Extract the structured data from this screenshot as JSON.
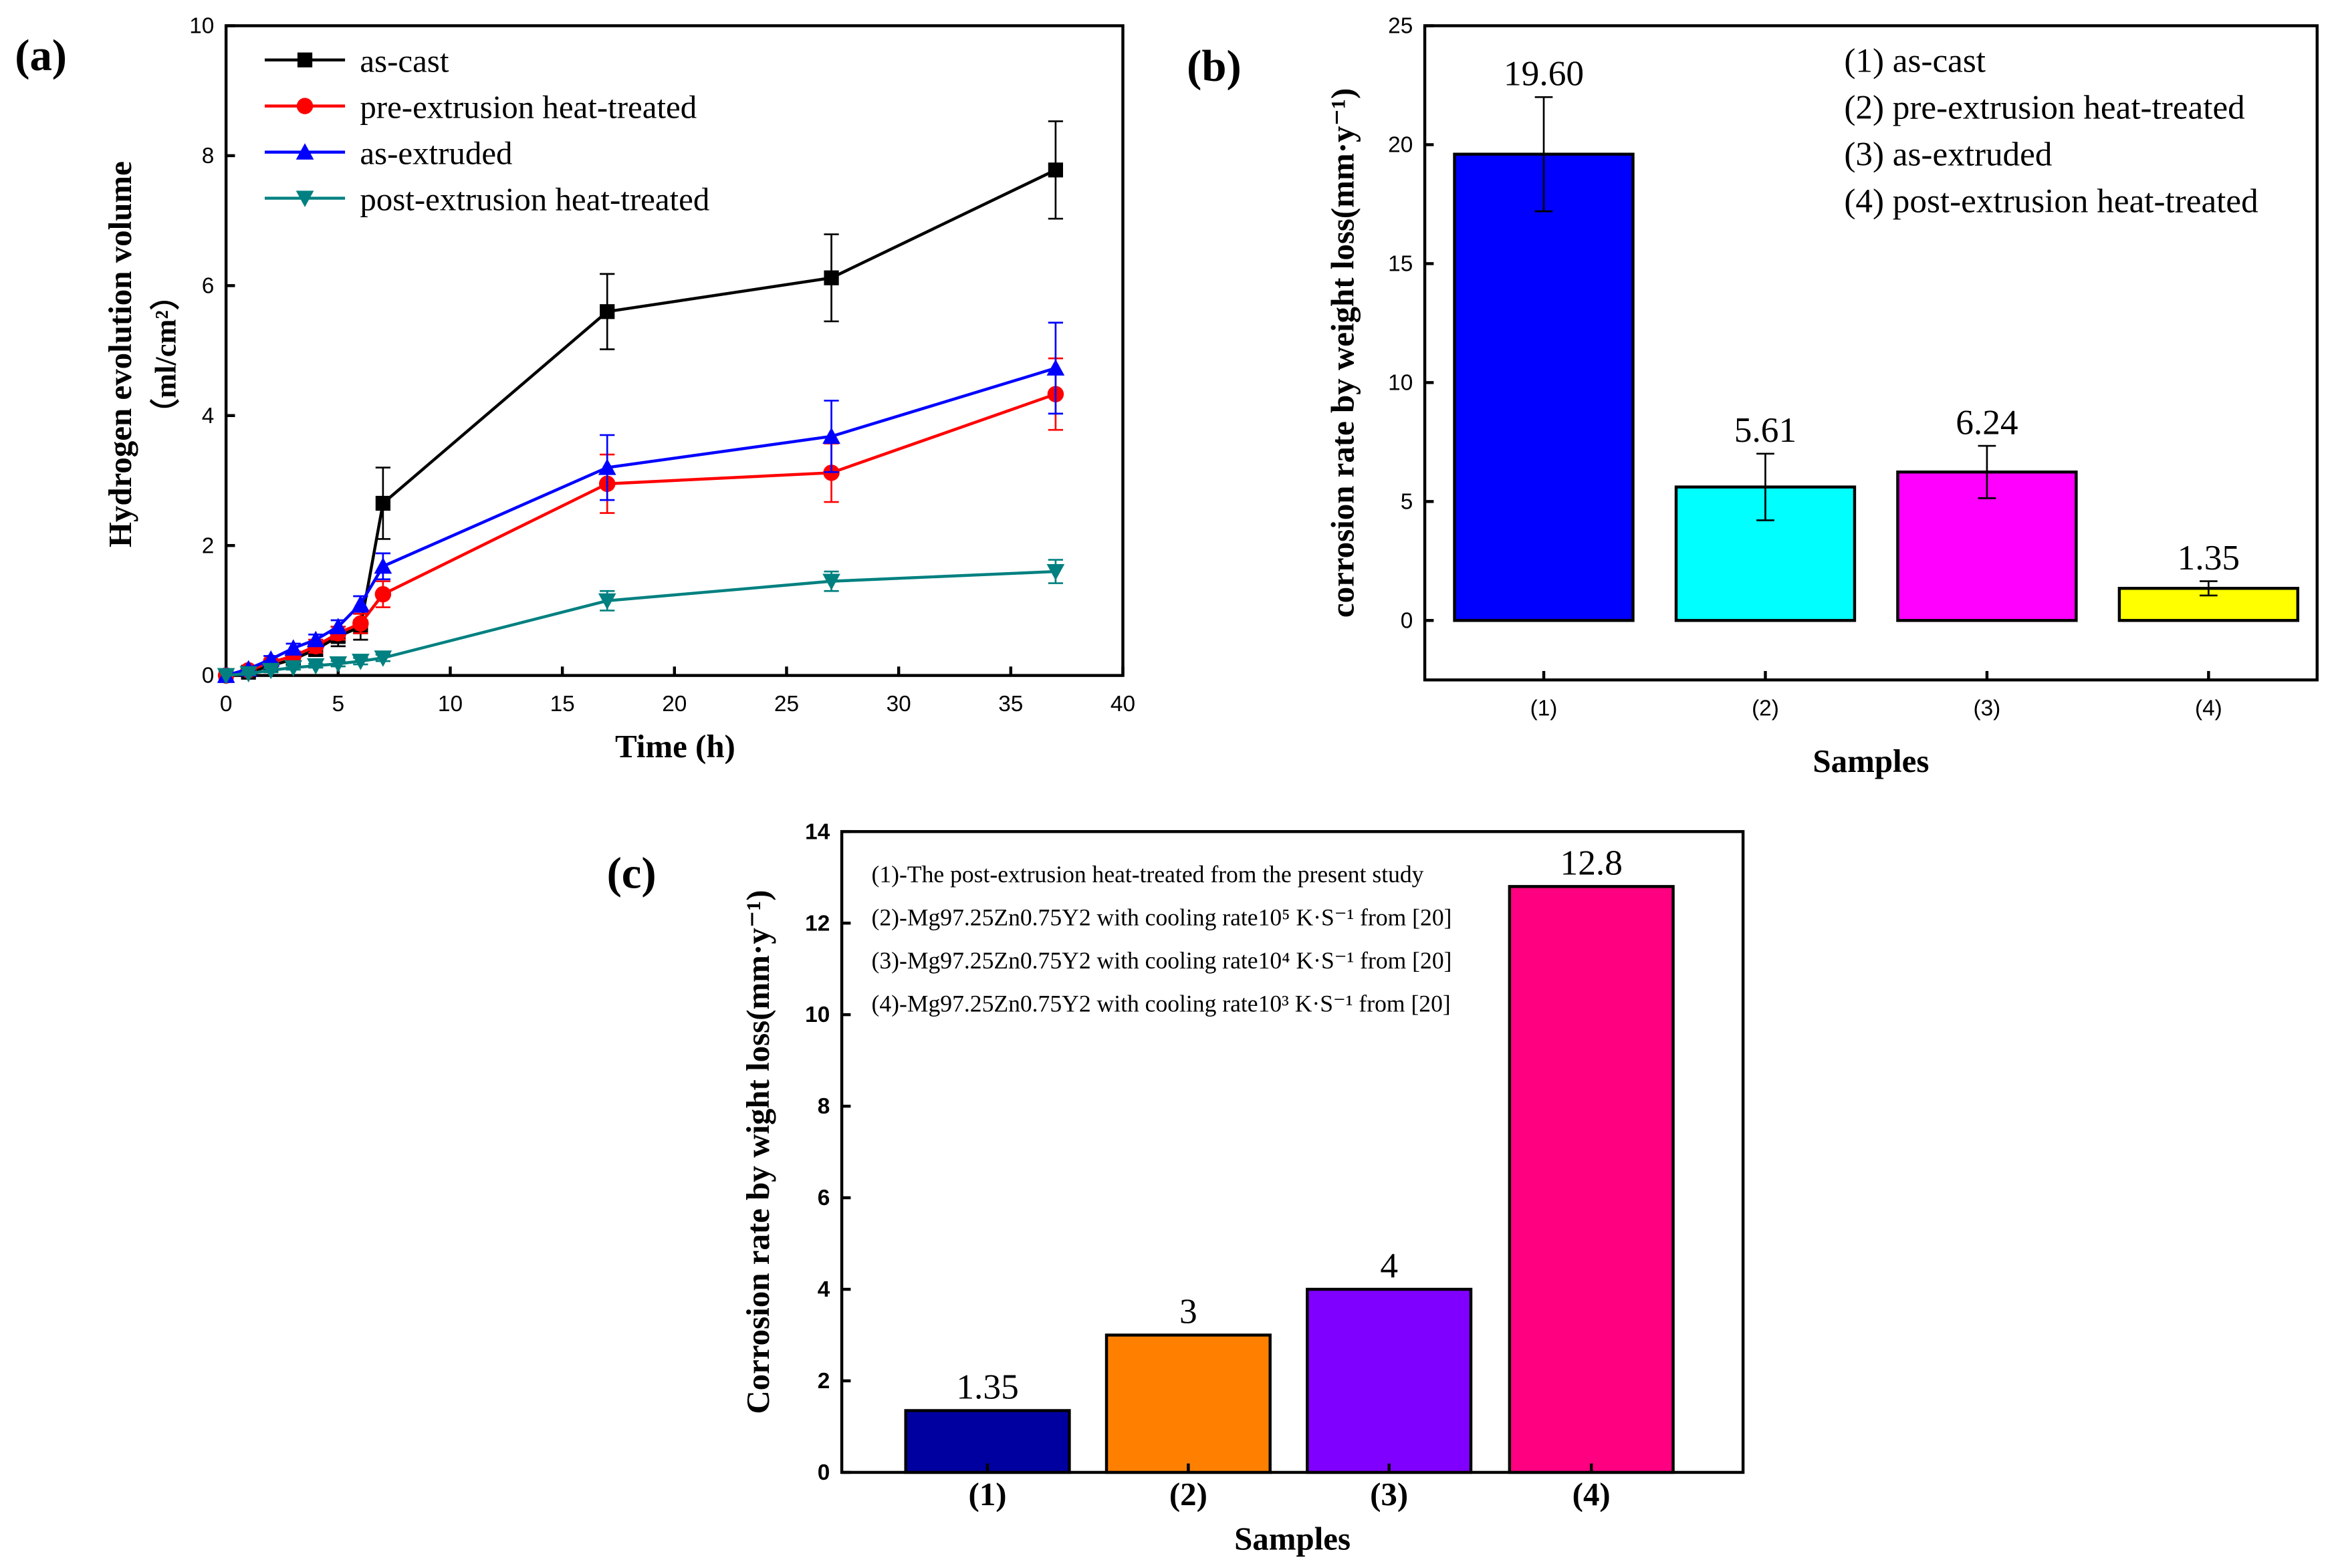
{
  "chart_data": [
    {
      "panel": "(a)",
      "type": "line",
      "xlabel": "Time (h)",
      "ylabel": "Hydrogen evolution volume",
      "ylabel_unit": "（ml/cm²）",
      "xlim": [
        0,
        40
      ],
      "ylim": [
        0,
        10
      ],
      "xticks": [
        0,
        5,
        10,
        15,
        20,
        25,
        30,
        35,
        40
      ],
      "yticks": [
        0,
        2,
        4,
        6,
        8,
        10
      ],
      "x": [
        0,
        1,
        2,
        3,
        4,
        5,
        6,
        7,
        17,
        27,
        37
      ],
      "series": [
        {
          "name": "as-cast",
          "color": "#000000",
          "marker": "square",
          "values": [
            0,
            0.05,
            0.15,
            0.25,
            0.4,
            0.6,
            0.75,
            2.65,
            5.6,
            6.12,
            7.78
          ],
          "errors": [
            0,
            0.03,
            0.05,
            0.08,
            0.1,
            0.15,
            0.2,
            0.55,
            0.58,
            0.67,
            0.75
          ]
        },
        {
          "name": "pre-extrusion heat-treated",
          "color": "#ff0000",
          "marker": "circle",
          "values": [
            0,
            0.08,
            0.2,
            0.3,
            0.45,
            0.65,
            0.8,
            1.25,
            2.95,
            3.12,
            4.33
          ],
          "errors": [
            0,
            0.03,
            0.05,
            0.07,
            0.1,
            0.1,
            0.15,
            0.2,
            0.45,
            0.45,
            0.55
          ]
        },
        {
          "name": "as-extruded",
          "color": "#0000ff",
          "marker": "triangle-up",
          "values": [
            0,
            0.1,
            0.25,
            0.42,
            0.55,
            0.75,
            1.1,
            1.68,
            3.2,
            3.68,
            4.73
          ],
          "errors": [
            0,
            0.03,
            0.05,
            0.07,
            0.08,
            0.1,
            0.12,
            0.2,
            0.5,
            0.55,
            0.7
          ]
        },
        {
          "name": "post-extrusion heat-treated",
          "color": "#008080",
          "marker": "triangle-down",
          "values": [
            0,
            0.03,
            0.08,
            0.12,
            0.15,
            0.18,
            0.22,
            0.27,
            1.15,
            1.45,
            1.6
          ],
          "errors": [
            0,
            0.02,
            0.03,
            0.03,
            0.03,
            0.04,
            0.05,
            0.05,
            0.15,
            0.15,
            0.18
          ]
        }
      ],
      "legend": "top-left"
    },
    {
      "panel": "(b)",
      "type": "bar",
      "xlabel": "Samples",
      "ylabel": "corrosion rate by weight loss(mm·y⁻¹)",
      "ylim": [
        -2.5,
        25
      ],
      "yticks": [
        0,
        5,
        10,
        15,
        20,
        25
      ],
      "categories": [
        "(1)",
        "(2)",
        "(3)",
        "(4)"
      ],
      "values": [
        19.6,
        5.61,
        6.24,
        1.35
      ],
      "labels": [
        "19.60",
        "5.61",
        "6.24",
        "1.35"
      ],
      "errors": [
        2.4,
        1.4,
        1.1,
        0.3
      ],
      "colors": [
        "#0000ff",
        "#00ffff",
        "#ff00ff",
        "#ffff00"
      ],
      "legend": [
        "(1) as-cast",
        "(2) pre-extrusion heat-treated",
        "(3) as-extruded",
        "(4) post-extrusion heat-treated"
      ]
    },
    {
      "panel": "(c)",
      "type": "bar",
      "xlabel": "Samples",
      "ylabel": "Corrosion rate by wight loss(mm·y⁻¹)",
      "ylim": [
        0,
        14
      ],
      "yticks": [
        0,
        2,
        4,
        6,
        8,
        10,
        12,
        14
      ],
      "categories": [
        "(1)",
        "(2)",
        "(3)",
        "(4)"
      ],
      "values": [
        1.35,
        3,
        4,
        12.8
      ],
      "labels": [
        "1.35",
        "3",
        "4",
        "12.8"
      ],
      "colors": [
        "#0000a0",
        "#ff8000",
        "#8000ff",
        "#ff0080"
      ],
      "legend": [
        "(1)-The post-extrusion heat-treated from the present study",
        "(2)-Mg97.25Zn0.75Y2 with cooling rate10⁵ K·S⁻¹ from [20]",
        "(3)-Mg97.25Zn0.75Y2 with cooling rate10⁴ K·S⁻¹ from [20]",
        "(4)-Mg97.25Zn0.75Y2 with cooling rate10³ K·S⁻¹ from [20]"
      ]
    }
  ]
}
